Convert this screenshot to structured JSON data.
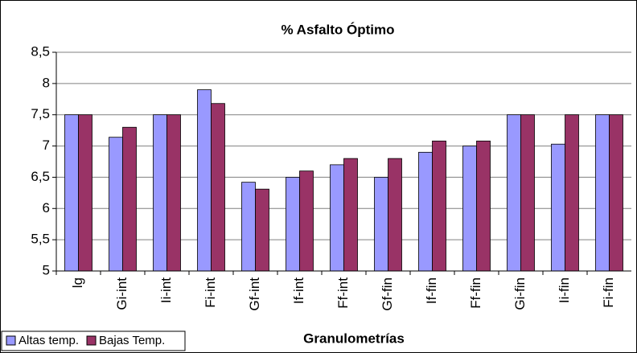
{
  "chart_data": {
    "type": "bar",
    "title": "% Asfalto Óptimo",
    "x_label": "Granulometrías",
    "categories": [
      "lg",
      "Gi-int",
      "Ii-int",
      "Fi-int",
      "Gf-int",
      "If-int",
      "Ff-int",
      "Gf-fin",
      "If-fin",
      "Ff-fin",
      "Gi-fin",
      "Ii-fin",
      "Fi-fin"
    ],
    "series": [
      {
        "name": "Altas temp.",
        "color": "#9999ff",
        "values": [
          7.5,
          7.14,
          7.5,
          7.9,
          6.42,
          6.5,
          6.7,
          6.5,
          6.9,
          7.0,
          7.5,
          7.03,
          7.5
        ]
      },
      {
        "name": "Bajas Temp.",
        "color": "#993366",
        "values": [
          7.5,
          7.3,
          7.5,
          7.68,
          6.31,
          6.6,
          6.8,
          6.8,
          7.08,
          7.08,
          7.5,
          7.5,
          7.5
        ]
      }
    ],
    "ylim": [
      5,
      8.5
    ],
    "yticks": [
      5,
      {
        "value": 5.5,
        "label": "5,5"
      },
      6,
      {
        "value": 6.5,
        "label": "6,5"
      },
      7,
      {
        "value": 7.5,
        "label": "7,5"
      },
      8,
      {
        "value": 8.5,
        "label": "8,5"
      }
    ],
    "grid": true,
    "legend": "bottom-left"
  }
}
